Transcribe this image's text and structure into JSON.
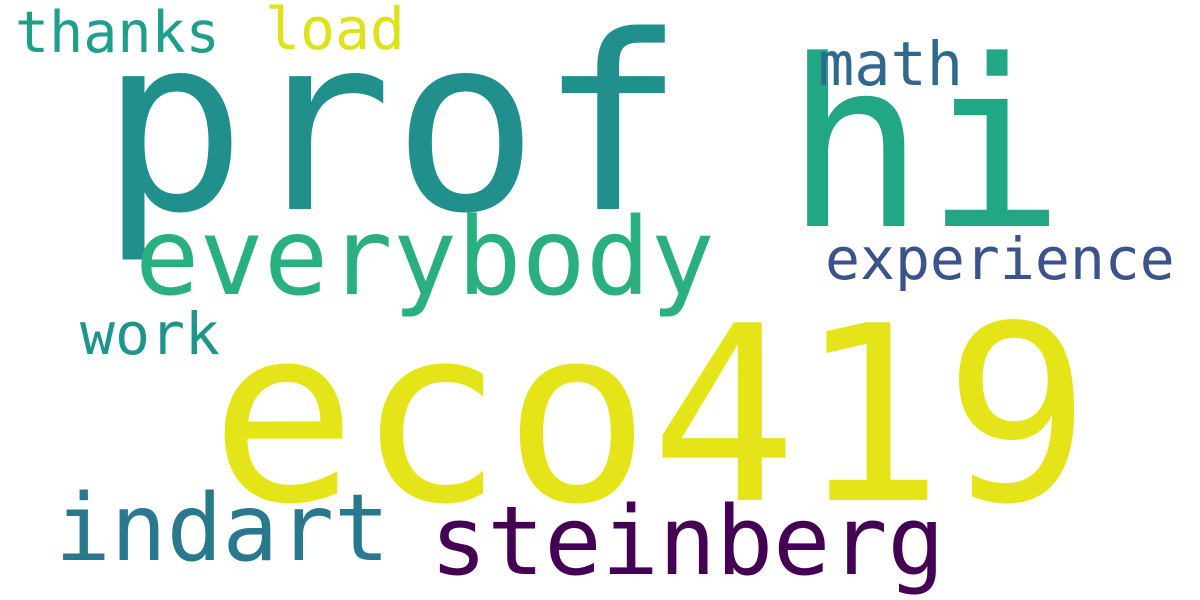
{
  "words": [
    {
      "key": "prof",
      "text": "prof",
      "color": "#21908d"
    },
    {
      "key": "hi",
      "text": "hi",
      "color": "#22a784"
    },
    {
      "key": "eco419",
      "text": "eco419",
      "color": "#e5e419"
    },
    {
      "key": "everybody",
      "text": "everybody",
      "color": "#2ab07f"
    },
    {
      "key": "steinberg",
      "text": "steinberg",
      "color": "#440154"
    },
    {
      "key": "indart",
      "text": "indart",
      "color": "#2a788e"
    },
    {
      "key": "experience",
      "text": "experience",
      "color": "#3b528b"
    },
    {
      "key": "math",
      "text": "math",
      "color": "#31688e"
    },
    {
      "key": "thanks",
      "text": "thanks",
      "color": "#1f9e89"
    },
    {
      "key": "load",
      "text": "load",
      "color": "#dde318"
    },
    {
      "key": "work",
      "text": "work",
      "color": "#1f948c"
    }
  ]
}
